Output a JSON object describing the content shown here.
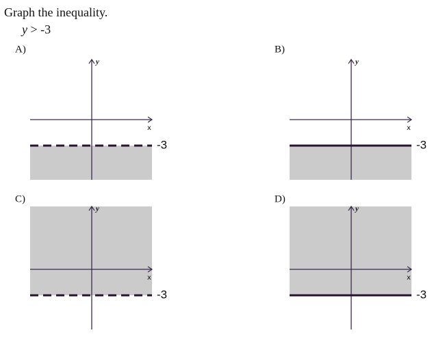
{
  "question": "Graph the inequality.",
  "inequality": {
    "variable": "y",
    "relation": "> -3"
  },
  "options": [
    {
      "label": "A)",
      "y_axis": "y",
      "x_axis": "x",
      "boundary_label": "-3"
    },
    {
      "label": "B)",
      "y_axis": "y",
      "x_axis": "x",
      "boundary_label": "-3"
    },
    {
      "label": "C)",
      "y_axis": "y",
      "x_axis": "x",
      "boundary_label": "-3"
    },
    {
      "label": "D)",
      "y_axis": "y",
      "x_axis": "x",
      "boundary_label": "-3"
    }
  ]
}
